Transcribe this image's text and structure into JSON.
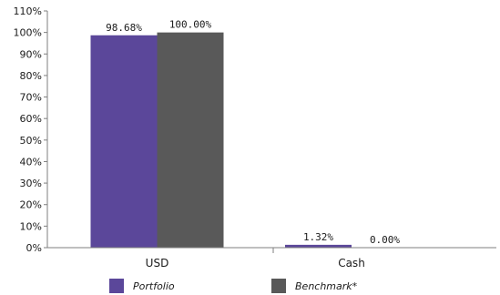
{
  "chart_data": {
    "type": "bar",
    "categories": [
      "USD",
      "Cash"
    ],
    "series": [
      {
        "name": "Portfolio",
        "values": [
          98.68,
          1.32
        ],
        "labels": [
          "98.68%",
          "1.32%"
        ],
        "color": "#5b479a"
      },
      {
        "name": "Benchmark*",
        "values": [
          100.0,
          0.0
        ],
        "labels": [
          "100.00%",
          "0.00%"
        ],
        "color": "#595959"
      }
    ],
    "ylim": [
      0,
      110
    ],
    "yticks": [
      0,
      10,
      20,
      30,
      40,
      50,
      60,
      70,
      80,
      90,
      100,
      110
    ],
    "ytick_labels": [
      "0%",
      "10%",
      "20%",
      "30%",
      "40%",
      "50%",
      "60%",
      "70%",
      "80%",
      "90%",
      "100%",
      "110%"
    ],
    "title": "",
    "xlabel": "",
    "ylabel": "",
    "grid": false,
    "legend_position": "bottom"
  }
}
